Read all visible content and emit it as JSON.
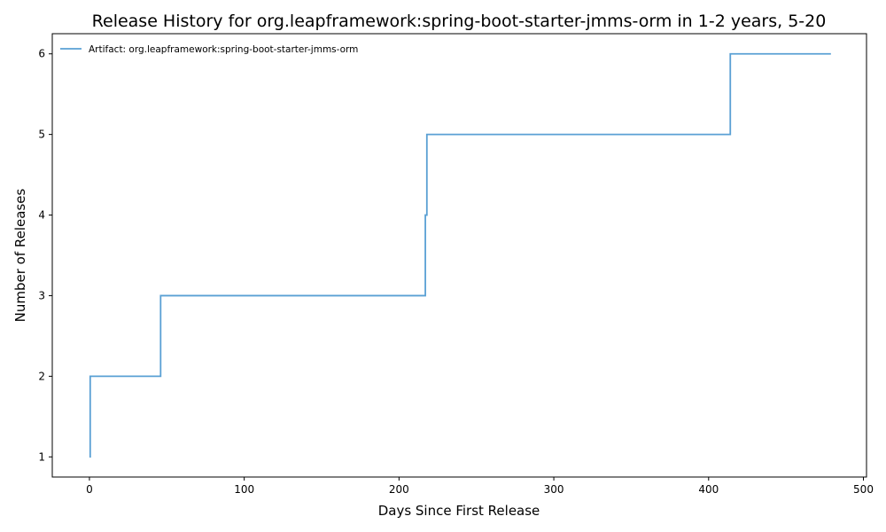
{
  "chart_data": {
    "type": "line",
    "title": "Release History for org.leapframework:spring-boot-starter-jmms-orm in 1-2 years, 5-20",
    "xlabel": "Days Since First Release",
    "ylabel": "Number of Releases",
    "xlim": [
      -24,
      502
    ],
    "ylim": [
      0.75,
      6.25
    ],
    "xticks": [
      0,
      100,
      200,
      300,
      400,
      500
    ],
    "yticks": [
      1,
      2,
      3,
      4,
      5,
      6
    ],
    "grid": false,
    "legend_position": "top-left",
    "step": "post",
    "series": [
      {
        "name": "Artifact: org.leapframework:spring-boot-starter-jmms-orm",
        "color": "#5aa0d4",
        "x": [
          0,
          0.5,
          46,
          217,
          218,
          414,
          479
        ],
        "y": [
          1,
          2,
          3,
          4,
          5,
          6,
          6
        ]
      }
    ]
  }
}
